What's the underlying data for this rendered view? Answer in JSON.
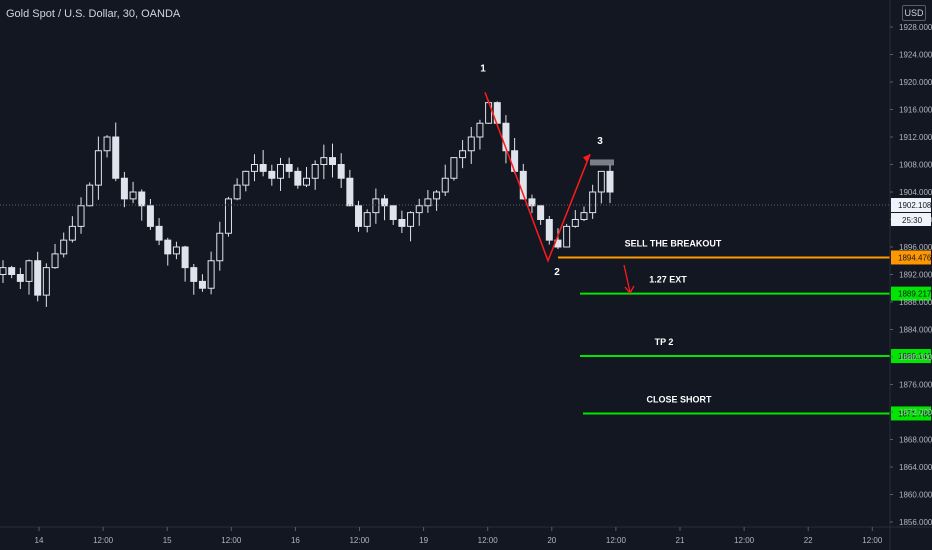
{
  "header": {
    "title": "Gold Spot / U.S. Dollar, 30, OANDA",
    "currency_button": "USD"
  },
  "price_axis": {
    "ticks": [
      "1928.000",
      "1924.000",
      "1920.000",
      "1916.000",
      "1912.000",
      "1908.000",
      "1904.000",
      "1900.000",
      "1896.000",
      "1892.000",
      "1888.000",
      "1884.000",
      "1880.000",
      "1876.000",
      "1872.000",
      "1868.000",
      "1864.000",
      "1860.000",
      "1856.000"
    ],
    "current_price": "1902.108",
    "countdown": "25:30"
  },
  "time_axis": {
    "ticks": [
      "14",
      "12:00",
      "15",
      "12:00",
      "16",
      "12:00",
      "19",
      "12:00",
      "20",
      "12:00",
      "21",
      "12:00",
      "22",
      "12:00"
    ]
  },
  "annotations": {
    "wave_labels": [
      "1",
      "2",
      "3"
    ],
    "levels": [
      {
        "label": "SELL THE BREAKOUT",
        "price_tag": "1894.476",
        "color": "#ff9800"
      },
      {
        "label": "1.27 EXT",
        "price_tag": "1889.217",
        "color": "#00e600"
      },
      {
        "label": "TP 2",
        "price_tag": "1880.141",
        "color": "#00e600"
      },
      {
        "label": "CLOSE SHORT",
        "price_tag": "1871.788",
        "color": "#00e600"
      }
    ]
  },
  "colors": {
    "background": "#131722",
    "candles": "#e0e3eb",
    "wave_line": "#ff1a1a",
    "axis_text": "#b2b5be"
  },
  "chart_data": {
    "type": "candlestick",
    "symbol": "Gold Spot / U.S. Dollar",
    "interval": "30",
    "ylim": [
      1856,
      1930
    ],
    "pivots": [
      {
        "label": "1",
        "price": 1918.5
      },
      {
        "label": "2",
        "price": 1894.0
      },
      {
        "label": "3",
        "price": 1909.5
      }
    ],
    "close_series": [
      1893,
      1892,
      1891,
      1894,
      1889,
      1893,
      1895,
      1897,
      1899,
      1902,
      1905,
      1910,
      1912,
      1906,
      1903,
      1904,
      1902,
      1899,
      1897,
      1895,
      1896,
      1893,
      1891,
      1890,
      1894,
      1898,
      1903,
      1905,
      1907,
      1908,
      1907,
      1906,
      1908,
      1907,
      1905,
      1906,
      1908,
      1909,
      1908,
      1906,
      1902,
      1899,
      1901,
      1903,
      1902,
      1900,
      1899,
      1901,
      1902,
      1903,
      1904,
      1906,
      1909,
      1910,
      1912,
      1914,
      1917,
      1914,
      1910,
      1907,
      1903,
      1902,
      1900,
      1897,
      1896,
      1899,
      1900,
      1901,
      1904,
      1907,
      1904
    ]
  }
}
